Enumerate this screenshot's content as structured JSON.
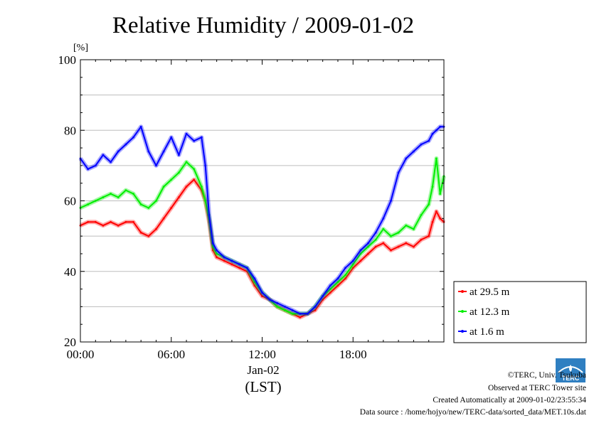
{
  "chart_data": {
    "type": "line",
    "title": "Relative Humidity / 2009-01-02",
    "yunit": "[%]",
    "ylim": [
      20,
      100
    ],
    "yticks": [
      20,
      40,
      60,
      80,
      100
    ],
    "xlim": [
      0,
      24
    ],
    "xticks": [
      0,
      6,
      12,
      18
    ],
    "xtick_labels": [
      "00:00",
      "06:00",
      "12:00",
      "18:00"
    ],
    "xlabel_date": "Jan-02",
    "xlabel_tz": "(LST)",
    "grid": true,
    "legend_position": "right",
    "series": [
      {
        "name": "at 29.5 m",
        "color": "#ff0000",
        "x": [
          0,
          0.5,
          1,
          1.5,
          2,
          2.5,
          3,
          3.5,
          4,
          4.5,
          5,
          5.5,
          6,
          6.5,
          7,
          7.5,
          8,
          8.25,
          8.5,
          8.75,
          9,
          9.5,
          10,
          10.5,
          11,
          11.5,
          12,
          12.5,
          13,
          13.5,
          14,
          14.5,
          15,
          15.5,
          16,
          16.5,
          17,
          17.5,
          18,
          18.5,
          19,
          19.5,
          20,
          20.5,
          21,
          21.5,
          22,
          22.5,
          23,
          23.25,
          23.5,
          23.75,
          24
        ],
        "y": [
          53,
          54,
          54,
          53,
          54,
          53,
          54,
          54,
          51,
          50,
          52,
          55,
          58,
          61,
          64,
          66,
          63,
          60,
          54,
          46,
          44,
          43,
          42,
          41,
          40,
          36,
          33,
          32,
          30,
          29,
          28,
          27,
          28,
          29,
          32,
          34,
          36,
          38,
          41,
          43,
          45,
          47,
          48,
          46,
          47,
          48,
          47,
          49,
          50,
          54,
          57,
          55,
          54
        ]
      },
      {
        "name": "at 12.3 m",
        "color": "#00ee00",
        "x": [
          0,
          0.5,
          1,
          1.5,
          2,
          2.5,
          3,
          3.5,
          4,
          4.5,
          5,
          5.5,
          6,
          6.5,
          7,
          7.5,
          8,
          8.25,
          8.5,
          8.75,
          9,
          9.5,
          10,
          10.5,
          11,
          11.5,
          12,
          12.5,
          13,
          13.5,
          14,
          14.5,
          15,
          15.5,
          16,
          16.5,
          17,
          17.5,
          18,
          18.5,
          19,
          19.5,
          20,
          20.5,
          21,
          21.5,
          22,
          22.5,
          23,
          23.25,
          23.5,
          23.75,
          24
        ],
        "y": [
          58,
          59,
          60,
          61,
          62,
          61,
          63,
          62,
          59,
          58,
          60,
          64,
          66,
          68,
          71,
          69,
          64,
          60,
          55,
          47,
          45,
          44,
          43,
          42,
          41,
          37,
          34,
          32,
          30,
          29,
          28,
          28,
          28,
          30,
          33,
          35,
          37,
          39,
          42,
          45,
          47,
          49,
          52,
          50,
          51,
          53,
          52,
          56,
          59,
          64,
          72,
          62,
          67
        ]
      },
      {
        "name": "at 1.6 m",
        "color": "#0000ff",
        "x": [
          0,
          0.5,
          1,
          1.5,
          2,
          2.5,
          3,
          3.5,
          4,
          4.5,
          5,
          5.5,
          6,
          6.5,
          7,
          7.5,
          8,
          8.25,
          8.5,
          8.75,
          9,
          9.5,
          10,
          10.5,
          11,
          11.5,
          12,
          12.5,
          13,
          13.5,
          14,
          14.5,
          15,
          15.5,
          16,
          16.5,
          17,
          17.5,
          18,
          18.5,
          19,
          19.5,
          20,
          20.5,
          21,
          21.5,
          22,
          22.5,
          23,
          23.25,
          23.5,
          23.75,
          24
        ],
        "y": [
          72,
          69,
          70,
          73,
          71,
          74,
          76,
          78,
          81,
          74,
          70,
          74,
          78,
          73,
          79,
          77,
          78,
          70,
          56,
          48,
          46,
          44,
          43,
          42,
          41,
          38,
          34,
          32,
          31,
          30,
          29,
          28,
          28,
          30,
          33,
          36,
          38,
          41,
          43,
          46,
          48,
          51,
          55,
          60,
          68,
          72,
          74,
          76,
          77,
          79,
          80,
          81,
          81
        ]
      }
    ]
  },
  "credits": {
    "line1": "©TERC, Univ. Tsukuba",
    "line2": "Observed at TERC Tower site",
    "line3": "Created Automatically at 2009-01-02/23:55:34",
    "line4": "Data source : /home/hojyo/new/TERC-data/sorted_data/MET.10s.dat"
  },
  "logo": {
    "icon": "terc-logo-icon",
    "text": "TERC",
    "color": "#2f7fc1"
  }
}
